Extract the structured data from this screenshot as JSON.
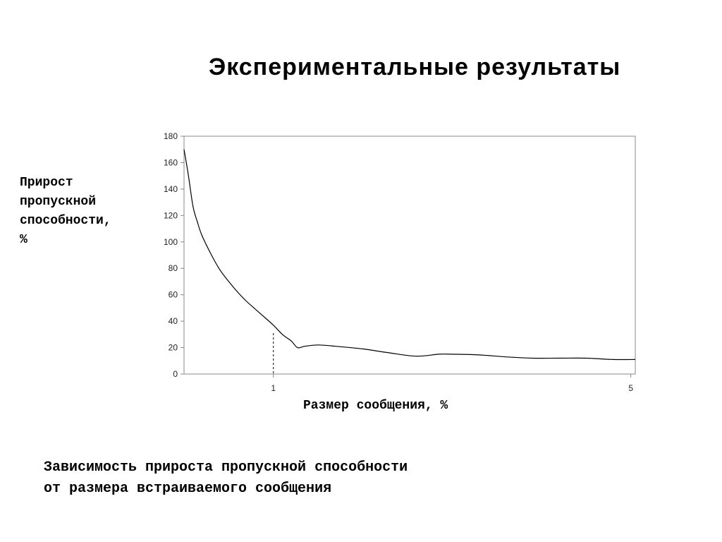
{
  "slide": {
    "title": "Экспериментальные результаты",
    "caption_lines": [
      "Зависимость прироста пропускной способности",
      "от размера встраиваемого сообщения"
    ]
  },
  "chart_data": {
    "type": "line",
    "title": "",
    "ylabel_lines": [
      "Прирост",
      "пропускной",
      "способности,",
      "%"
    ],
    "xlabel": "Размер сообщения, %",
    "ylim": [
      0,
      180
    ],
    "yticks": [
      0,
      20,
      40,
      60,
      80,
      100,
      120,
      140,
      160,
      180
    ],
    "xlim": [
      0,
      5.05
    ],
    "xticks": [
      1,
      5
    ],
    "grid": false,
    "legend": "none",
    "line_color": "#000000",
    "series": [
      {
        "x": [
          0.0,
          0.05,
          0.1,
          0.15,
          0.2,
          0.3,
          0.4,
          0.5,
          0.6,
          0.7,
          0.8,
          0.9,
          1.0,
          1.1,
          1.2,
          1.27,
          1.35,
          1.5,
          1.7,
          2.0,
          2.3,
          2.6,
          2.85,
          3.0,
          3.3,
          3.6,
          3.9,
          4.2,
          4.5,
          4.8,
          5.05
        ],
        "values": [
          170,
          150,
          127,
          115,
          105,
          91,
          79,
          70,
          62,
          55,
          49,
          43,
          37,
          30,
          25,
          20,
          21,
          22,
          21,
          19,
          16,
          13.5,
          15,
          15,
          14.5,
          13,
          12,
          12,
          12,
          11,
          11
        ]
      }
    ],
    "marker": {
      "x": 1.0,
      "y": 31,
      "style": "dashed"
    }
  }
}
